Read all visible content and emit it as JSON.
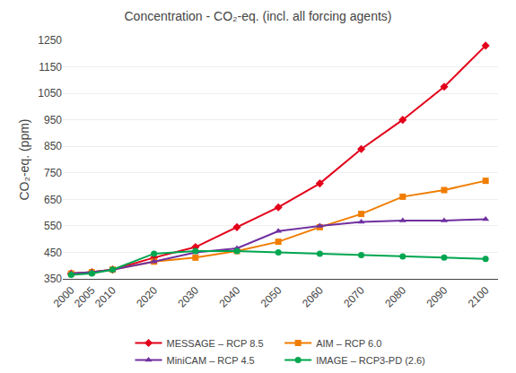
{
  "chart_data": {
    "type": "line",
    "title": "Concentration - CO₂-eq. (incl. all forcing agents)",
    "y_label": "CO₂-eq. (ppm)",
    "x": [
      2000,
      2005,
      2010,
      2020,
      2030,
      2040,
      2050,
      2060,
      2070,
      2080,
      2090,
      2100
    ],
    "series": [
      {
        "name": "MESSAGE – RCP 8.5",
        "color": "#e2001a",
        "marker": "diamond",
        "values": [
          370,
          375,
          385,
          430,
          470,
          545,
          620,
          710,
          840,
          950,
          1075,
          1230
        ]
      },
      {
        "name": "AIM – RCP 6.0",
        "color": "#f07d00",
        "marker": "square",
        "values": [
          370,
          375,
          385,
          415,
          430,
          455,
          490,
          545,
          595,
          660,
          685,
          720
        ]
      },
      {
        "name": "MiniCAM – RCP 4.5",
        "color": "#7030a0",
        "marker": "triangle-up",
        "values": [
          370,
          375,
          385,
          415,
          450,
          465,
          530,
          550,
          565,
          570,
          570,
          575
        ]
      },
      {
        "name": "IMAGE – RCP3-PD (2.6)",
        "color": "#00a650",
        "marker": "circle",
        "values": [
          365,
          370,
          385,
          445,
          455,
          455,
          450,
          445,
          440,
          435,
          430,
          425
        ]
      }
    ],
    "xlim": [
      1998,
      2103
    ],
    "xticks": [
      2000,
      2005,
      2010,
      2020,
      2030,
      2040,
      2050,
      2060,
      2070,
      2080,
      2090,
      2100
    ],
    "ylim": [
      350,
      1250
    ],
    "yticks": [
      350,
      450,
      550,
      650,
      750,
      850,
      950,
      1050,
      1150,
      1250
    ],
    "grid": "y",
    "legend": "bottom"
  }
}
